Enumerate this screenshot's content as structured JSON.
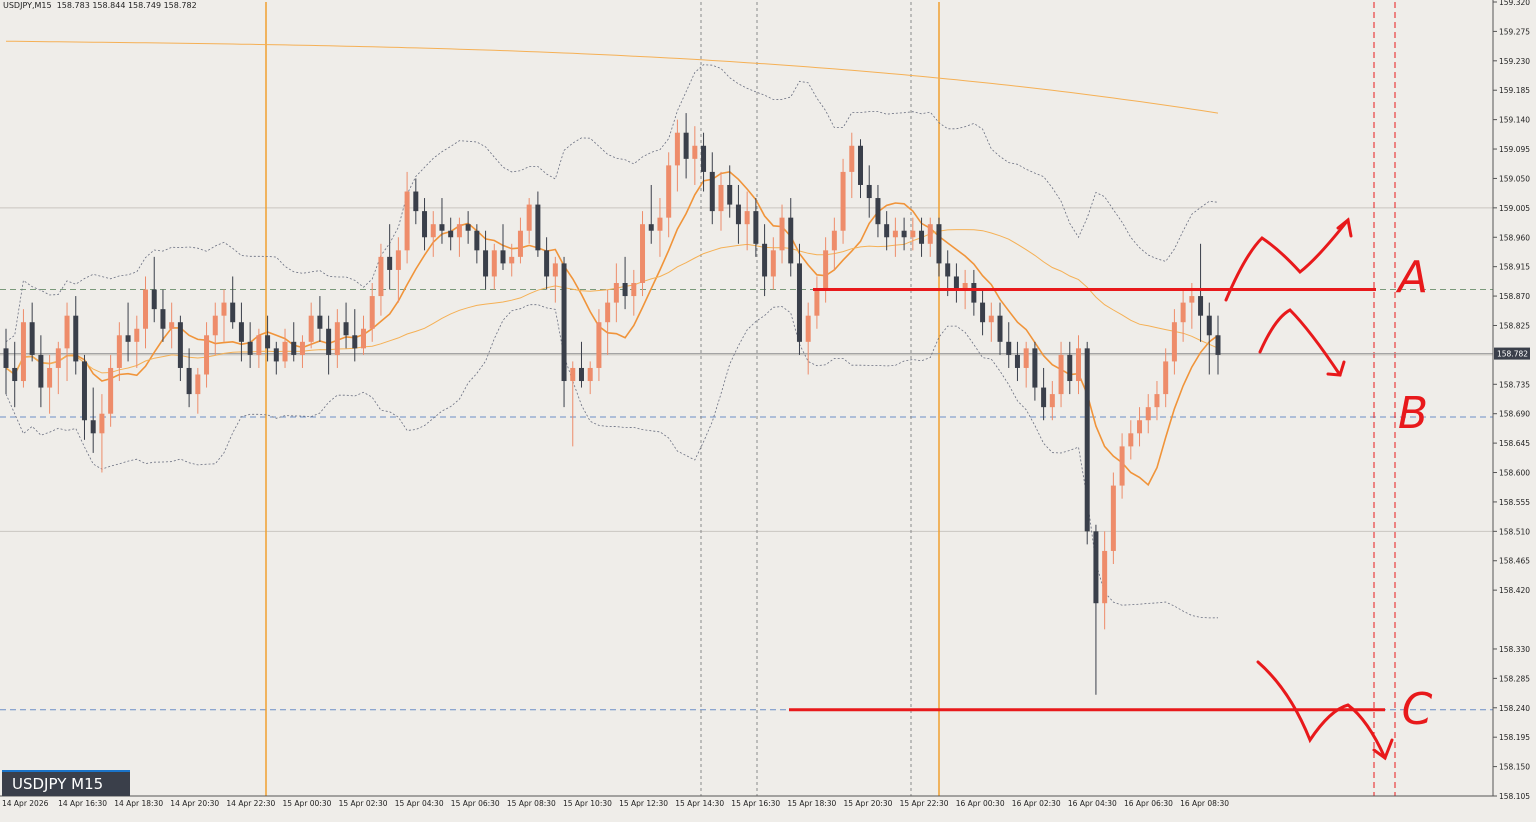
{
  "header": {
    "symbol_timeframe": "USDJPY,M15",
    "ohlc": "158.783 158.844 158.749 158.782"
  },
  "badge": {
    "label": "USDJPY M15"
  },
  "chart_data": {
    "type": "candlestick",
    "title": "",
    "symbol": "USDJPY",
    "timeframe": "M15",
    "ylim": [
      158.105,
      159.32
    ],
    "y_ticks": [
      "159.320",
      "159.275",
      "159.230",
      "159.185",
      "159.140",
      "159.095",
      "159.050",
      "159.005",
      "158.960",
      "158.915",
      "158.870",
      "158.825",
      "158.780",
      "158.735",
      "158.690",
      "158.645",
      "158.600",
      "158.555",
      "158.510",
      "158.465",
      "158.420",
      "158.375",
      "158.330",
      "158.285",
      "158.240",
      "158.195",
      "158.150",
      "158.105"
    ],
    "y_tick_labels": [
      "159.320",
      "159.275",
      "159.230",
      "159.185",
      "159.140",
      "159.095",
      "159.050",
      "159.005",
      "158.960",
      "158.915",
      "158.870",
      "158.825",
      "158.735",
      "158.690",
      "158.645",
      "158.600",
      "158.555",
      "158.510",
      "158.465",
      "158.420",
      "158.330",
      "158.285",
      "158.240",
      "158.195",
      "158.150",
      "158.105"
    ],
    "current_price": "158.782",
    "x_tick_labels": [
      "14 Apr 2026",
      "14 Apr 16:30",
      "14 Apr 18:30",
      "14 Apr 20:30",
      "14 Apr 22:30",
      "15 Apr 00:30",
      "15 Apr 02:30",
      "15 Apr 04:30",
      "15 Apr 06:30",
      "15 Apr 08:30",
      "15 Apr 10:30",
      "15 Apr 12:30",
      "15 Apr 14:30",
      "15 Apr 16:30",
      "15 Apr 18:30",
      "15 Apr 20:30",
      "15 Apr 22:30",
      "16 Apr 00:30",
      "16 Apr 02:30",
      "16 Apr 04:30",
      "16 Apr 06:30",
      "16 Apr 08:30"
    ],
    "bull_color": "#ee8c6a",
    "bear_color": "#3a3f4a",
    "ma_fast_color": "#f0943a",
    "ma_slow_color": "#f5b055",
    "levels": [
      {
        "name": "A",
        "price": 158.88,
        "color": "#e8191b"
      },
      {
        "name": "B",
        "price": 158.685,
        "color": "#e8191b"
      },
      {
        "name": "C",
        "price": 158.237,
        "color": "#e8191b"
      }
    ],
    "annotations": [
      "A",
      "B",
      "C"
    ],
    "candles": [
      [
        158.79,
        158.82,
        158.72,
        158.76
      ],
      [
        158.76,
        158.8,
        158.7,
        158.74
      ],
      [
        158.74,
        158.85,
        158.73,
        158.83
      ],
      [
        158.83,
        158.86,
        158.77,
        158.78
      ],
      [
        158.78,
        158.81,
        158.7,
        158.73
      ],
      [
        158.73,
        158.78,
        158.69,
        158.76
      ],
      [
        158.76,
        158.8,
        158.72,
        158.79
      ],
      [
        158.79,
        158.86,
        158.74,
        158.84
      ],
      [
        158.84,
        158.87,
        158.75,
        158.77
      ],
      [
        158.77,
        158.78,
        158.65,
        158.68
      ],
      [
        158.68,
        158.73,
        158.63,
        158.66
      ],
      [
        158.66,
        158.72,
        158.6,
        158.69
      ],
      [
        158.69,
        158.78,
        158.67,
        158.76
      ],
      [
        158.76,
        158.83,
        158.74,
        158.81
      ],
      [
        158.81,
        158.86,
        158.77,
        158.8
      ],
      [
        158.8,
        158.84,
        158.76,
        158.82
      ],
      [
        158.82,
        158.9,
        158.79,
        158.88
      ],
      [
        158.88,
        158.93,
        158.83,
        158.85
      ],
      [
        158.85,
        158.88,
        158.8,
        158.82
      ],
      [
        158.82,
        158.86,
        158.79,
        158.83
      ],
      [
        158.83,
        158.84,
        158.74,
        158.76
      ],
      [
        158.76,
        158.79,
        158.7,
        158.72
      ],
      [
        158.72,
        158.76,
        158.69,
        158.75
      ],
      [
        158.75,
        158.83,
        158.73,
        158.81
      ],
      [
        158.81,
        158.86,
        158.78,
        158.84
      ],
      [
        158.84,
        158.88,
        158.8,
        158.86
      ],
      [
        158.86,
        158.9,
        158.82,
        158.83
      ],
      [
        158.83,
        158.86,
        158.77,
        158.8
      ],
      [
        158.8,
        158.83,
        158.76,
        158.78
      ],
      [
        158.78,
        158.82,
        158.76,
        158.81
      ],
      [
        158.81,
        158.84,
        158.77,
        158.79
      ],
      [
        158.79,
        158.8,
        158.75,
        158.77
      ],
      [
        158.77,
        158.82,
        158.76,
        158.8
      ],
      [
        158.8,
        158.83,
        158.77,
        158.78
      ],
      [
        158.78,
        158.81,
        158.76,
        158.8
      ],
      [
        158.8,
        158.86,
        158.79,
        158.84
      ],
      [
        158.84,
        158.87,
        158.8,
        158.82
      ],
      [
        158.82,
        158.84,
        158.75,
        158.78
      ],
      [
        158.78,
        158.85,
        158.76,
        158.83
      ],
      [
        158.83,
        158.86,
        158.79,
        158.81
      ],
      [
        158.81,
        158.85,
        158.77,
        158.79
      ],
      [
        158.79,
        158.84,
        158.78,
        158.82
      ],
      [
        158.82,
        158.89,
        158.8,
        158.87
      ],
      [
        158.87,
        158.95,
        158.84,
        158.93
      ],
      [
        158.93,
        158.98,
        158.88,
        158.91
      ],
      [
        158.91,
        158.96,
        158.86,
        158.94
      ],
      [
        158.94,
        159.06,
        158.92,
        159.03
      ],
      [
        159.03,
        159.05,
        158.98,
        159.0
      ],
      [
        159.0,
        159.02,
        158.94,
        158.96
      ],
      [
        158.96,
        159.0,
        158.93,
        158.98
      ],
      [
        158.98,
        159.02,
        158.95,
        158.97
      ],
      [
        158.97,
        158.99,
        158.94,
        158.96
      ],
      [
        158.96,
        158.99,
        158.93,
        158.98
      ],
      [
        158.98,
        159.0,
        158.95,
        158.97
      ],
      [
        158.97,
        158.98,
        158.92,
        158.94
      ],
      [
        158.94,
        158.97,
        158.88,
        158.9
      ],
      [
        158.9,
        158.95,
        158.88,
        158.94
      ],
      [
        158.94,
        158.98,
        158.91,
        158.92
      ],
      [
        158.92,
        158.95,
        158.9,
        158.93
      ],
      [
        158.93,
        158.99,
        158.92,
        158.97
      ],
      [
        158.97,
        159.02,
        158.95,
        159.01
      ],
      [
        159.01,
        159.03,
        158.93,
        158.94
      ],
      [
        158.94,
        158.96,
        158.88,
        158.9
      ],
      [
        158.9,
        158.93,
        158.86,
        158.92
      ],
      [
        158.92,
        158.93,
        158.7,
        158.74
      ],
      [
        158.74,
        158.77,
        158.64,
        158.76
      ],
      [
        158.76,
        158.8,
        158.73,
        158.74
      ],
      [
        158.74,
        158.77,
        158.72,
        158.76
      ],
      [
        158.76,
        158.85,
        158.74,
        158.83
      ],
      [
        158.83,
        158.88,
        158.78,
        158.86
      ],
      [
        158.86,
        158.92,
        158.83,
        158.89
      ],
      [
        158.89,
        158.93,
        158.85,
        158.87
      ],
      [
        158.87,
        158.91,
        158.84,
        158.89
      ],
      [
        158.89,
        159.0,
        158.87,
        158.98
      ],
      [
        158.98,
        159.04,
        158.95,
        158.97
      ],
      [
        158.97,
        159.02,
        158.93,
        158.99
      ],
      [
        158.99,
        159.09,
        158.96,
        159.07
      ],
      [
        159.07,
        159.14,
        159.03,
        159.12
      ],
      [
        159.12,
        159.15,
        159.05,
        159.08
      ],
      [
        159.08,
        159.13,
        159.04,
        159.1
      ],
      [
        159.1,
        159.12,
        159.03,
        159.06
      ],
      [
        159.06,
        159.09,
        158.98,
        159.0
      ],
      [
        159.0,
        159.06,
        158.97,
        159.04
      ],
      [
        159.04,
        159.07,
        158.99,
        159.01
      ],
      [
        159.01,
        159.04,
        158.95,
        158.98
      ],
      [
        158.98,
        159.03,
        158.94,
        159.0
      ],
      [
        159.0,
        159.02,
        158.93,
        158.95
      ],
      [
        158.95,
        158.98,
        158.87,
        158.9
      ],
      [
        158.9,
        158.96,
        158.88,
        158.94
      ],
      [
        158.94,
        159.01,
        158.92,
        158.99
      ],
      [
        158.99,
        159.02,
        158.9,
        158.92
      ],
      [
        158.92,
        158.95,
        158.78,
        158.8
      ],
      [
        158.8,
        158.86,
        158.75,
        158.84
      ],
      [
        158.84,
        158.9,
        158.82,
        158.88
      ],
      [
        158.88,
        158.96,
        158.86,
        158.94
      ],
      [
        158.94,
        158.99,
        158.91,
        158.97
      ],
      [
        158.97,
        159.08,
        158.95,
        159.06
      ],
      [
        159.06,
        159.12,
        159.02,
        159.1
      ],
      [
        159.1,
        159.11,
        159.02,
        159.04
      ],
      [
        159.04,
        159.07,
        158.99,
        159.02
      ],
      [
        159.02,
        159.04,
        158.96,
        158.98
      ],
      [
        158.98,
        159.0,
        158.94,
        158.96
      ],
      [
        158.96,
        158.99,
        158.93,
        158.97
      ],
      [
        158.97,
        158.99,
        158.94,
        158.96
      ],
      [
        158.96,
        158.99,
        158.94,
        158.97
      ],
      [
        158.97,
        158.99,
        158.93,
        158.95
      ],
      [
        158.95,
        158.99,
        158.93,
        158.98
      ],
      [
        158.98,
        158.99,
        158.9,
        158.92
      ],
      [
        158.92,
        158.94,
        158.87,
        158.9
      ],
      [
        158.9,
        158.92,
        158.86,
        158.88
      ],
      [
        158.88,
        158.91,
        158.85,
        158.89
      ],
      [
        158.89,
        158.91,
        158.84,
        158.86
      ],
      [
        158.86,
        158.88,
        158.81,
        158.83
      ],
      [
        158.83,
        158.86,
        158.8,
        158.84
      ],
      [
        158.84,
        158.86,
        158.78,
        158.8
      ],
      [
        158.8,
        158.83,
        158.76,
        158.78
      ],
      [
        158.78,
        158.8,
        158.74,
        158.76
      ],
      [
        158.76,
        158.8,
        158.73,
        158.79
      ],
      [
        158.79,
        158.8,
        158.71,
        158.73
      ],
      [
        158.73,
        158.76,
        158.68,
        158.7
      ],
      [
        158.7,
        158.74,
        158.68,
        158.72
      ],
      [
        158.72,
        158.8,
        158.7,
        158.78
      ],
      [
        158.78,
        158.8,
        158.72,
        158.74
      ],
      [
        158.74,
        158.81,
        158.72,
        158.79
      ],
      [
        158.79,
        158.8,
        158.49,
        158.51
      ],
      [
        158.51,
        158.52,
        158.26,
        158.4
      ],
      [
        158.4,
        158.51,
        158.36,
        158.48
      ],
      [
        158.48,
        158.6,
        158.46,
        158.58
      ],
      [
        158.58,
        158.66,
        158.56,
        158.64
      ],
      [
        158.64,
        158.68,
        158.62,
        158.66
      ],
      [
        158.66,
        158.7,
        158.64,
        158.68
      ],
      [
        158.68,
        158.72,
        158.66,
        158.7
      ],
      [
        158.7,
        158.74,
        158.68,
        158.72
      ],
      [
        158.72,
        158.79,
        158.7,
        158.77
      ],
      [
        158.77,
        158.85,
        158.75,
        158.83
      ],
      [
        158.83,
        158.88,
        158.8,
        158.86
      ],
      [
        158.86,
        158.89,
        158.82,
        158.87
      ],
      [
        158.87,
        158.95,
        158.8,
        158.84
      ],
      [
        158.84,
        158.86,
        158.75,
        158.81
      ],
      [
        158.81,
        158.84,
        158.75,
        158.78
      ]
    ]
  }
}
